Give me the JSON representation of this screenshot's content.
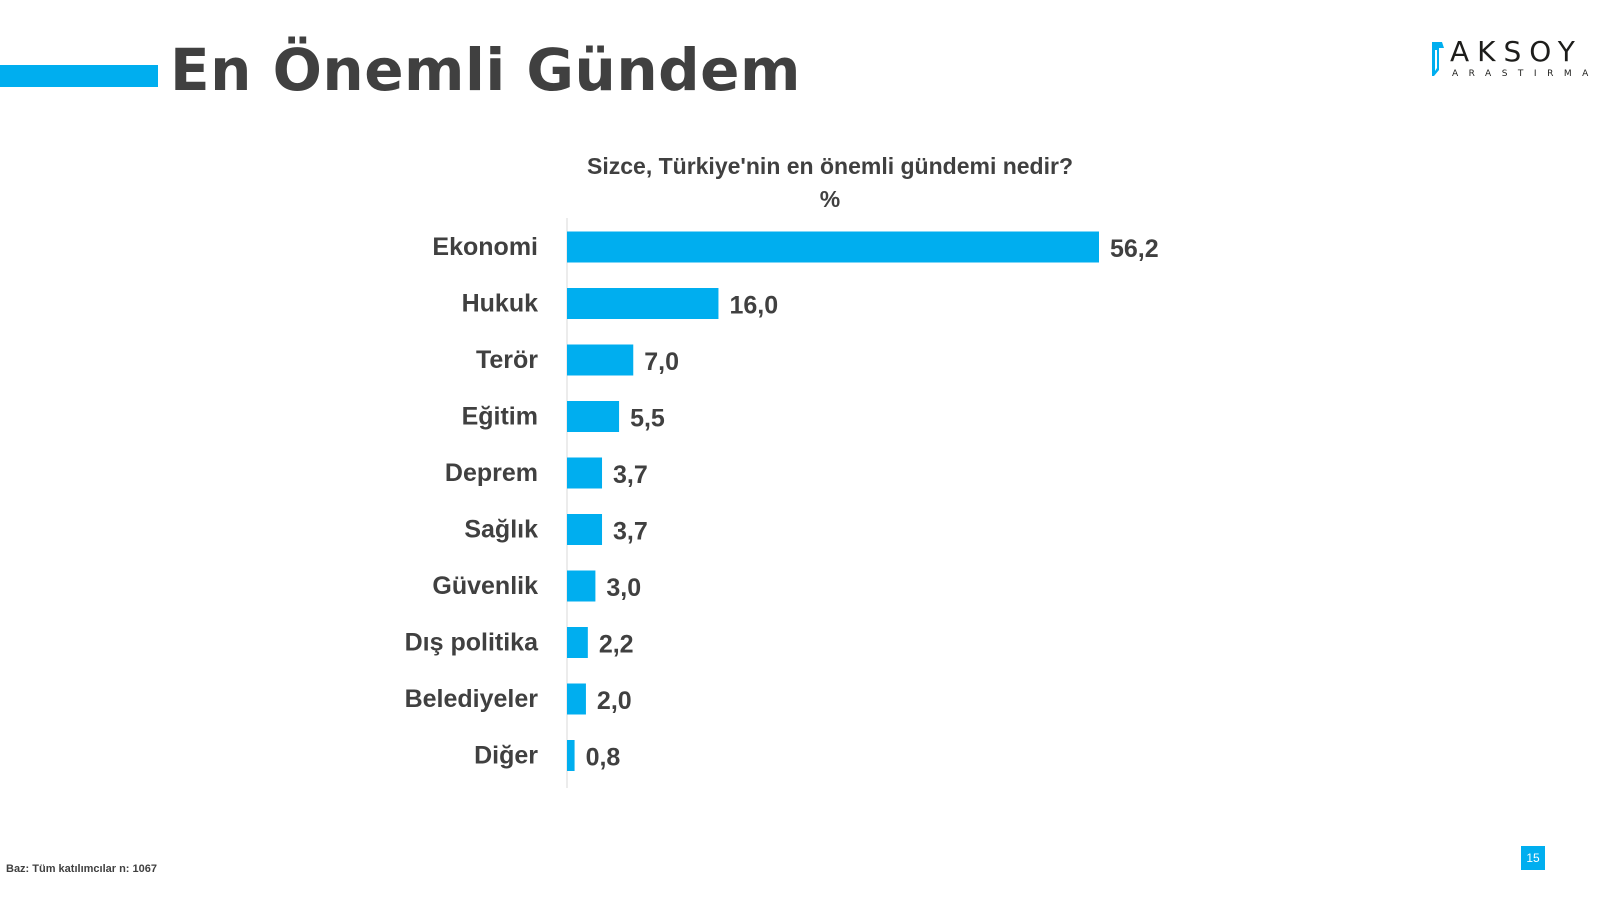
{
  "slide": {
    "title": "En Önemli Gündem",
    "footnote": "Baz: Tüm katılımcılar n: 1067",
    "page_number": "15",
    "accent_color": "#00aeef"
  },
  "logo": {
    "name": "AKSOY",
    "subtitle": "ARASTIRMA"
  },
  "chart_data": {
    "type": "bar",
    "orientation": "horizontal",
    "title": "Sizce, Türkiye'nin en önemli gündemi nedir?",
    "subtitle": "%",
    "categories": [
      "Ekonomi",
      "Hukuk",
      "Terör",
      "Eğitim",
      "Deprem",
      "Sağlık",
      "Güvenlik",
      "Dış politika",
      "Belediyeler",
      "Diğer"
    ],
    "values": [
      56.2,
      16.0,
      7.0,
      5.5,
      3.7,
      3.7,
      3.0,
      2.2,
      2.0,
      0.8
    ],
    "value_labels": [
      "56,2",
      "16,0",
      "7,0",
      "5,5",
      "3,7",
      "3,7",
      "3,0",
      "2,2",
      "2,0",
      "0,8"
    ],
    "bar_color": "#00aeef",
    "grid": false,
    "legend": "none"
  }
}
